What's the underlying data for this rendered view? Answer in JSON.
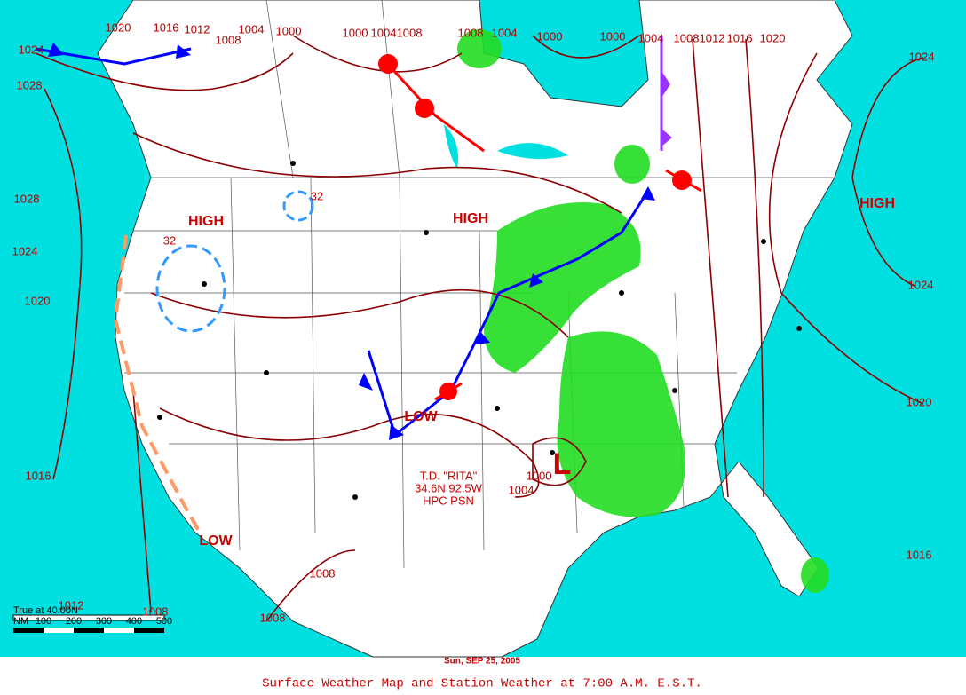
{
  "map": {
    "date": "Sun, SEP 25, 2005",
    "caption": "Surface Weather Map and Station Weather at 7:00 A.M. E.S.T.",
    "systems": [
      "HIGH",
      "HIGH",
      "HIGH",
      "LOW",
      "LOW",
      "L"
    ],
    "temps": [
      "32",
      "32"
    ],
    "storm": [
      "T.D. \"RITA\"",
      "34.6N 92.5W",
      "HPC PSN"
    ],
    "isobars": [
      "1024",
      "1020",
      "1016",
      "1012",
      "1008",
      "1004",
      "1000",
      "1000",
      "1004",
      "1008",
      "1008",
      "1004",
      "1000",
      "1000",
      "1004",
      "1008",
      "1012",
      "1016",
      "1020",
      "1024",
      "1028",
      "1028",
      "1024",
      "1020",
      "1016",
      "1012",
      "1008",
      "1008",
      "1008",
      "1004",
      "1000",
      "1024",
      "1020",
      "1016"
    ],
    "scale": {
      "title": "True at 40.00N",
      "unit": "NM",
      "ticks": [
        "100",
        "200",
        "300",
        "400",
        "500"
      ]
    }
  }
}
